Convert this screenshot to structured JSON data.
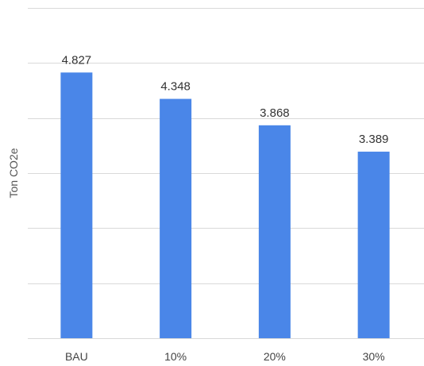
{
  "chart_data": {
    "type": "bar",
    "title": "",
    "xlabel": "",
    "ylabel": "Ton CO2e",
    "categories": [
      "BAU",
      "10%",
      "20%",
      "30%"
    ],
    "values": [
      4.827,
      4.348,
      3.868,
      3.389
    ],
    "value_labels": [
      "4.827",
      "4.348",
      "3.868",
      "3.389"
    ],
    "ylim": [
      0,
      6
    ],
    "grid": true,
    "legend": "none",
    "bar_color": "#4a86e8"
  }
}
